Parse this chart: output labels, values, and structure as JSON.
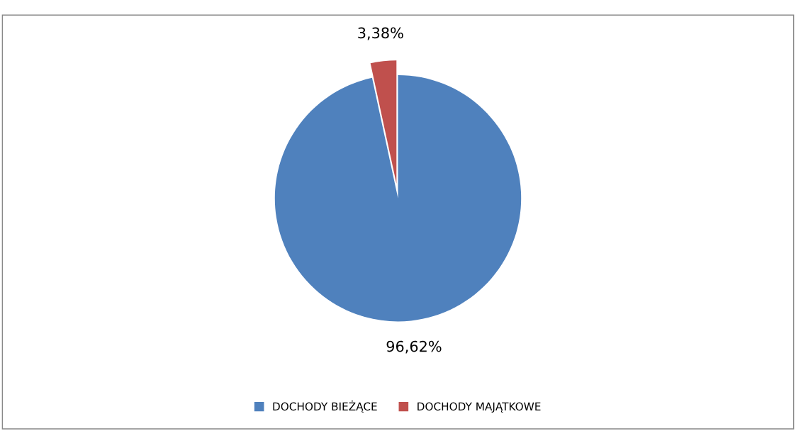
{
  "chart_data": {
    "type": "pie",
    "categories": [
      "DOCHODY BIEŻĄCE",
      "DOCHODY MAJĄTKOWE"
    ],
    "values": [
      96.62,
      3.38
    ],
    "colors": [
      "#4f81bd",
      "#c0504d"
    ],
    "value_labels": [
      "96,62%",
      "3,38%"
    ],
    "legend": "bottom"
  }
}
